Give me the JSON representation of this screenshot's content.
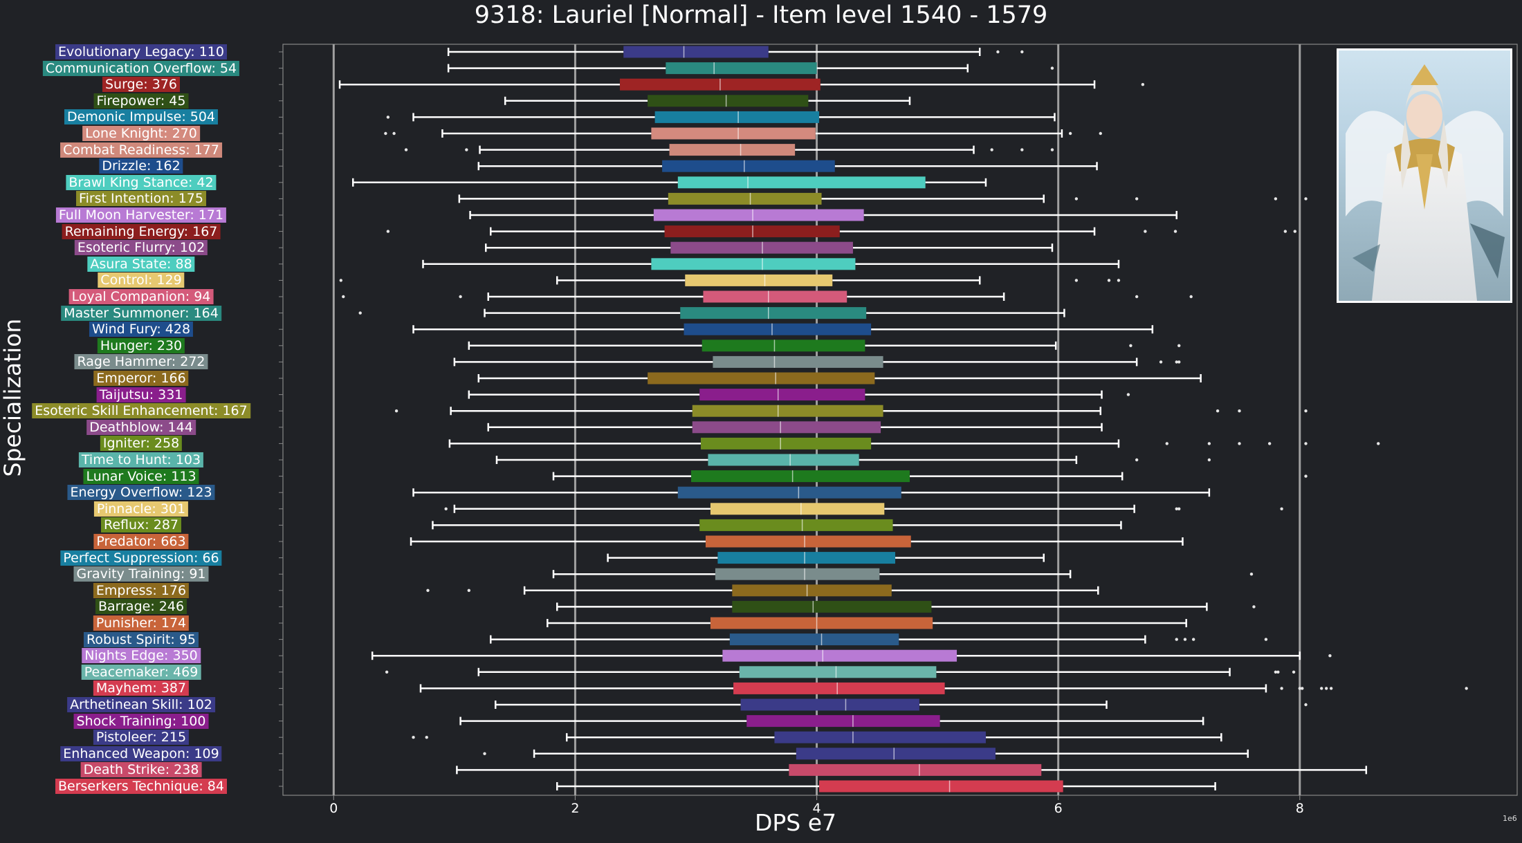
{
  "chart_data": {
    "type": "boxplot",
    "title": "9318: Lauriel [Normal] - Item level 1540 - 1579",
    "xlabel": "DPS e7",
    "ylabel": "Specialization",
    "x_scale_note": "1e6",
    "xlim": [
      -0.42,
      9.8
    ],
    "xticks": [
      0,
      2,
      4,
      6,
      8
    ],
    "xtick_labels": [
      "0",
      "2",
      "4",
      "6",
      "8"
    ],
    "grid": "vertical",
    "categories": [
      {
        "label": "Evolutionary Legacy: 110",
        "color": "#3b3b88",
        "whisker_low": 0.95,
        "q1": 2.4,
        "median": 2.9,
        "q3": 3.6,
        "whisker_high": 5.35,
        "outliers": [
          5.5,
          5.7
        ]
      },
      {
        "label": "Communication Overflow: 54",
        "color": "#2a8a80",
        "whisker_low": 0.95,
        "q1": 2.75,
        "median": 3.15,
        "q3": 4.0,
        "whisker_high": 5.25,
        "outliers": [
          5.95
        ]
      },
      {
        "label": "Surge: 376",
        "color": "#9e2424",
        "whisker_low": 0.05,
        "q1": 2.37,
        "median": 3.2,
        "q3": 4.03,
        "whisker_high": 6.3,
        "outliers": [
          6.7
        ]
      },
      {
        "label": "Firepower: 45",
        "color": "#2f5016",
        "whisker_low": 1.42,
        "q1": 2.6,
        "median": 3.25,
        "q3": 3.93,
        "whisker_high": 4.77,
        "outliers": []
      },
      {
        "label": "Demonic Impulse: 504",
        "color": "#187fa0",
        "whisker_low": 0.66,
        "q1": 2.66,
        "median": 3.35,
        "q3": 4.02,
        "whisker_high": 5.97,
        "outliers": [
          0.45
        ]
      },
      {
        "label": "Lone Knight: 270",
        "color": "#d48a7e",
        "whisker_low": 0.9,
        "q1": 2.63,
        "median": 3.35,
        "q3": 3.99,
        "whisker_high": 6.03,
        "outliers": [
          0.43,
          0.5,
          6.1,
          6.35
        ]
      },
      {
        "label": "Combat Readiness: 177",
        "color": "#cf897b",
        "whisker_low": 1.21,
        "q1": 2.78,
        "median": 3.37,
        "q3": 3.82,
        "whisker_high": 5.3,
        "outliers": [
          0.6,
          1.1,
          5.45,
          5.7,
          5.95
        ]
      },
      {
        "label": "Drizzle: 162",
        "color": "#1e4d8c",
        "whisker_low": 1.2,
        "q1": 2.72,
        "median": 3.4,
        "q3": 4.15,
        "whisker_high": 6.32,
        "outliers": []
      },
      {
        "label": "Brawl King Stance: 42",
        "color": "#4ecdbf",
        "whisker_low": 0.16,
        "q1": 2.85,
        "median": 3.43,
        "q3": 4.9,
        "whisker_high": 5.4,
        "outliers": []
      },
      {
        "label": "First Intention: 175",
        "color": "#8c8c28",
        "whisker_low": 1.04,
        "q1": 2.77,
        "median": 3.45,
        "q3": 4.04,
        "whisker_high": 5.88,
        "outliers": [
          6.15,
          6.65,
          7.8,
          8.05
        ]
      },
      {
        "label": "Full Moon Harvester: 171",
        "color": "#b87ad4",
        "whisker_low": 1.13,
        "q1": 2.65,
        "median": 3.47,
        "q3": 4.39,
        "whisker_high": 6.98,
        "outliers": []
      },
      {
        "label": "Remaining Energy: 167",
        "color": "#8c1e1e",
        "whisker_low": 1.3,
        "q1": 2.74,
        "median": 3.47,
        "q3": 4.19,
        "whisker_high": 6.3,
        "outliers": [
          0.45,
          6.72,
          6.97,
          7.88,
          7.96
        ]
      },
      {
        "label": "Esoteric Flurry: 102",
        "color": "#8c4b8a",
        "whisker_low": 1.26,
        "q1": 2.79,
        "median": 3.55,
        "q3": 4.3,
        "whisker_high": 5.95,
        "outliers": []
      },
      {
        "label": "Asura State: 88",
        "color": "#4ecdbf",
        "whisker_low": 0.74,
        "q1": 2.63,
        "median": 3.55,
        "q3": 4.32,
        "whisker_high": 6.5,
        "outliers": []
      },
      {
        "label": "Control: 129",
        "color": "#e6c870",
        "whisker_low": 1.85,
        "q1": 2.91,
        "median": 3.57,
        "q3": 4.13,
        "whisker_high": 5.35,
        "outliers": [
          0.06,
          6.15,
          6.42,
          6.5
        ]
      },
      {
        "label": "Loyal Companion: 94",
        "color": "#d45a7a",
        "whisker_low": 1.28,
        "q1": 3.06,
        "median": 3.6,
        "q3": 4.25,
        "whisker_high": 5.55,
        "outliers": [
          0.08,
          1.05,
          6.65,
          7.1
        ]
      },
      {
        "label": "Master Summoner: 164",
        "color": "#2a8a80",
        "whisker_low": 1.25,
        "q1": 2.87,
        "median": 3.6,
        "q3": 4.41,
        "whisker_high": 6.05,
        "outliers": [
          0.22
        ]
      },
      {
        "label": "Wind Fury: 428",
        "color": "#1e4d8c",
        "whisker_low": 0.66,
        "q1": 2.9,
        "median": 3.63,
        "q3": 4.45,
        "whisker_high": 6.78,
        "outliers": []
      },
      {
        "label": "Hunger: 230",
        "color": "#1e7a1e",
        "whisker_low": 1.12,
        "q1": 3.05,
        "median": 3.65,
        "q3": 4.4,
        "whisker_high": 5.98,
        "outliers": [
          6.6,
          7.0
        ]
      },
      {
        "label": "Rage Hammer: 272",
        "color": "#7a8c8c",
        "whisker_low": 1.0,
        "q1": 3.14,
        "median": 3.65,
        "q3": 4.55,
        "whisker_high": 6.65,
        "outliers": [
          6.85,
          6.98,
          7.0
        ]
      },
      {
        "label": "Emperor: 166",
        "color": "#8c6a1e",
        "whisker_low": 1.2,
        "q1": 2.6,
        "median": 3.66,
        "q3": 4.48,
        "whisker_high": 7.18,
        "outliers": []
      },
      {
        "label": "Taijutsu: 331",
        "color": "#8a1e8c",
        "whisker_low": 1.12,
        "q1": 3.03,
        "median": 3.68,
        "q3": 4.4,
        "whisker_high": 6.36,
        "outliers": [
          6.58
        ]
      },
      {
        "label": "Esoteric Skill Enhancement: 167",
        "color": "#8c8c28",
        "whisker_low": 0.97,
        "q1": 2.97,
        "median": 3.68,
        "q3": 4.55,
        "whisker_high": 6.35,
        "outliers": [
          0.52,
          7.32,
          7.5,
          8.05
        ]
      },
      {
        "label": "Deathblow: 144",
        "color": "#8c4b8a",
        "whisker_low": 1.28,
        "q1": 2.97,
        "median": 3.7,
        "q3": 4.53,
        "whisker_high": 6.36,
        "outliers": []
      },
      {
        "label": "Igniter: 258",
        "color": "#6a8c1e",
        "whisker_low": 0.96,
        "q1": 3.04,
        "median": 3.7,
        "q3": 4.45,
        "whisker_high": 6.5,
        "outliers": [
          6.9,
          7.25,
          7.5,
          7.75,
          8.05,
          8.65
        ]
      },
      {
        "label": "Time to Hunt: 103",
        "color": "#5ab4aa",
        "whisker_low": 1.35,
        "q1": 3.1,
        "median": 3.78,
        "q3": 4.35,
        "whisker_high": 6.15,
        "outliers": [
          6.65,
          7.25
        ]
      },
      {
        "label": "Lunar Voice: 113",
        "color": "#1e7a1e",
        "whisker_low": 1.82,
        "q1": 2.96,
        "median": 3.8,
        "q3": 4.77,
        "whisker_high": 6.53,
        "outliers": [
          8.05
        ]
      },
      {
        "label": "Energy Overflow: 123",
        "color": "#2a5a8a",
        "whisker_low": 0.66,
        "q1": 2.85,
        "median": 3.85,
        "q3": 4.7,
        "whisker_high": 7.25,
        "outliers": []
      },
      {
        "label": "Pinnacle: 301",
        "color": "#e6c870",
        "whisker_low": 1.0,
        "q1": 3.12,
        "median": 3.87,
        "q3": 4.56,
        "whisker_high": 6.63,
        "outliers": [
          0.93,
          6.98,
          7.0,
          7.85
        ]
      },
      {
        "label": "Reflux: 287",
        "color": "#6a8c1e",
        "whisker_low": 0.82,
        "q1": 3.03,
        "median": 3.88,
        "q3": 4.63,
        "whisker_high": 6.52,
        "outliers": []
      },
      {
        "label": "Predator: 663",
        "color": "#c8643a",
        "whisker_low": 0.64,
        "q1": 3.08,
        "median": 3.9,
        "q3": 4.78,
        "whisker_high": 7.03,
        "outliers": []
      },
      {
        "label": "Perfect Suppression: 66",
        "color": "#187fa0",
        "whisker_low": 2.27,
        "q1": 3.18,
        "median": 3.9,
        "q3": 4.65,
        "whisker_high": 5.88,
        "outliers": []
      },
      {
        "label": "Gravity Training: 91",
        "color": "#7a8c8c",
        "whisker_low": 1.82,
        "q1": 3.16,
        "median": 3.9,
        "q3": 4.52,
        "whisker_high": 6.1,
        "outliers": [
          7.6
        ]
      },
      {
        "label": "Empress: 176",
        "color": "#8c6a1e",
        "whisker_low": 1.58,
        "q1": 3.3,
        "median": 3.92,
        "q3": 4.62,
        "whisker_high": 6.33,
        "outliers": [
          0.78,
          1.12
        ]
      },
      {
        "label": "Barrage: 246",
        "color": "#2f5016",
        "whisker_low": 1.85,
        "q1": 3.3,
        "median": 3.97,
        "q3": 4.95,
        "whisker_high": 7.23,
        "outliers": [
          7.62
        ]
      },
      {
        "label": "Punisher: 174",
        "color": "#c8643a",
        "whisker_low": 1.77,
        "q1": 3.12,
        "median": 4.0,
        "q3": 4.96,
        "whisker_high": 7.06,
        "outliers": []
      },
      {
        "label": "Robust Spirit: 95",
        "color": "#2a5a8a",
        "whisker_low": 1.3,
        "q1": 3.28,
        "median": 4.04,
        "q3": 4.68,
        "whisker_high": 6.72,
        "outliers": [
          6.98,
          7.05,
          7.12,
          7.72
        ]
      },
      {
        "label": "Nights Edge: 350",
        "color": "#b87ad4",
        "whisker_low": 0.32,
        "q1": 3.22,
        "median": 4.05,
        "q3": 5.16,
        "whisker_high": 8.0,
        "outliers": [
          8.25
        ]
      },
      {
        "label": "Peacemaker: 469",
        "color": "#6ab4aa",
        "whisker_low": 1.2,
        "q1": 3.36,
        "median": 4.16,
        "q3": 4.99,
        "whisker_high": 7.42,
        "outliers": [
          0.44,
          7.8,
          7.82,
          7.95
        ]
      },
      {
        "label": "Mayhem: 387",
        "color": "#d43c50",
        "whisker_low": 0.72,
        "q1": 3.31,
        "median": 4.17,
        "q3": 5.06,
        "whisker_high": 7.72,
        "outliers": [
          7.85,
          8.0,
          8.02,
          8.18,
          8.22,
          8.26,
          9.38
        ]
      },
      {
        "label": "Arthetinean Skill: 102",
        "color": "#3b3b88",
        "whisker_low": 1.34,
        "q1": 3.37,
        "median": 4.24,
        "q3": 4.85,
        "whisker_high": 6.4,
        "outliers": [
          8.05
        ]
      },
      {
        "label": "Shock Training: 100",
        "color": "#8a1e8c",
        "whisker_low": 1.05,
        "q1": 3.42,
        "median": 4.3,
        "q3": 5.02,
        "whisker_high": 7.2,
        "outliers": []
      },
      {
        "label": "Pistoleer: 215",
        "color": "#3b3b88",
        "whisker_low": 1.93,
        "q1": 3.65,
        "median": 4.3,
        "q3": 5.4,
        "whisker_high": 7.35,
        "outliers": [
          0.66,
          0.77
        ]
      },
      {
        "label": "Enhanced Weapon: 109",
        "color": "#3b3b88",
        "whisker_low": 1.66,
        "q1": 3.83,
        "median": 4.64,
        "q3": 5.48,
        "whisker_high": 7.57,
        "outliers": [
          1.25
        ]
      },
      {
        "label": "Death Strike: 238",
        "color": "#c84a6a",
        "whisker_low": 1.02,
        "q1": 3.77,
        "median": 4.85,
        "q3": 5.86,
        "whisker_high": 8.55,
        "outliers": []
      },
      {
        "label": "Berserkers Technique: 84",
        "color": "#d43c50",
        "whisker_low": 1.85,
        "q1": 4.02,
        "median": 5.1,
        "q3": 6.04,
        "whisker_high": 7.3,
        "outliers": []
      }
    ]
  },
  "colors": {
    "background": "#202226",
    "axes_frame": "#888888",
    "grid": "#a0a0a0",
    "whisker": "#ffffff"
  },
  "portrait_icon": "character-portrait"
}
